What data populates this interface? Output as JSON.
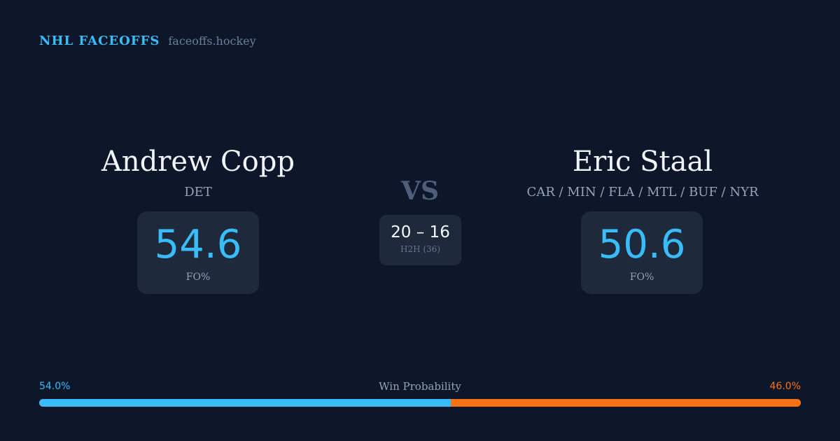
{
  "brand": {
    "name": "NHL FACEOFFS",
    "url": "faceoffs.hockey"
  },
  "player_a": {
    "name": "Andrew Copp",
    "team": "DET",
    "fo_value": "54.6",
    "fo_label": "FO%"
  },
  "player_b": {
    "name": "Eric Staal",
    "team": "CAR / MIN / FLA / MTL / BUF / NYR",
    "fo_value": "50.6",
    "fo_label": "FO%"
  },
  "versus": {
    "label": "VS",
    "score": "20 – 16",
    "h2h_label": "H2H (36)"
  },
  "win_probability": {
    "title": "Win Probability",
    "a_label": "54.0%",
    "b_label": "46.0%",
    "a_percent": 54.0,
    "b_percent": 46.0,
    "colors": {
      "a": "#38bdf8",
      "b": "#f97316"
    }
  }
}
